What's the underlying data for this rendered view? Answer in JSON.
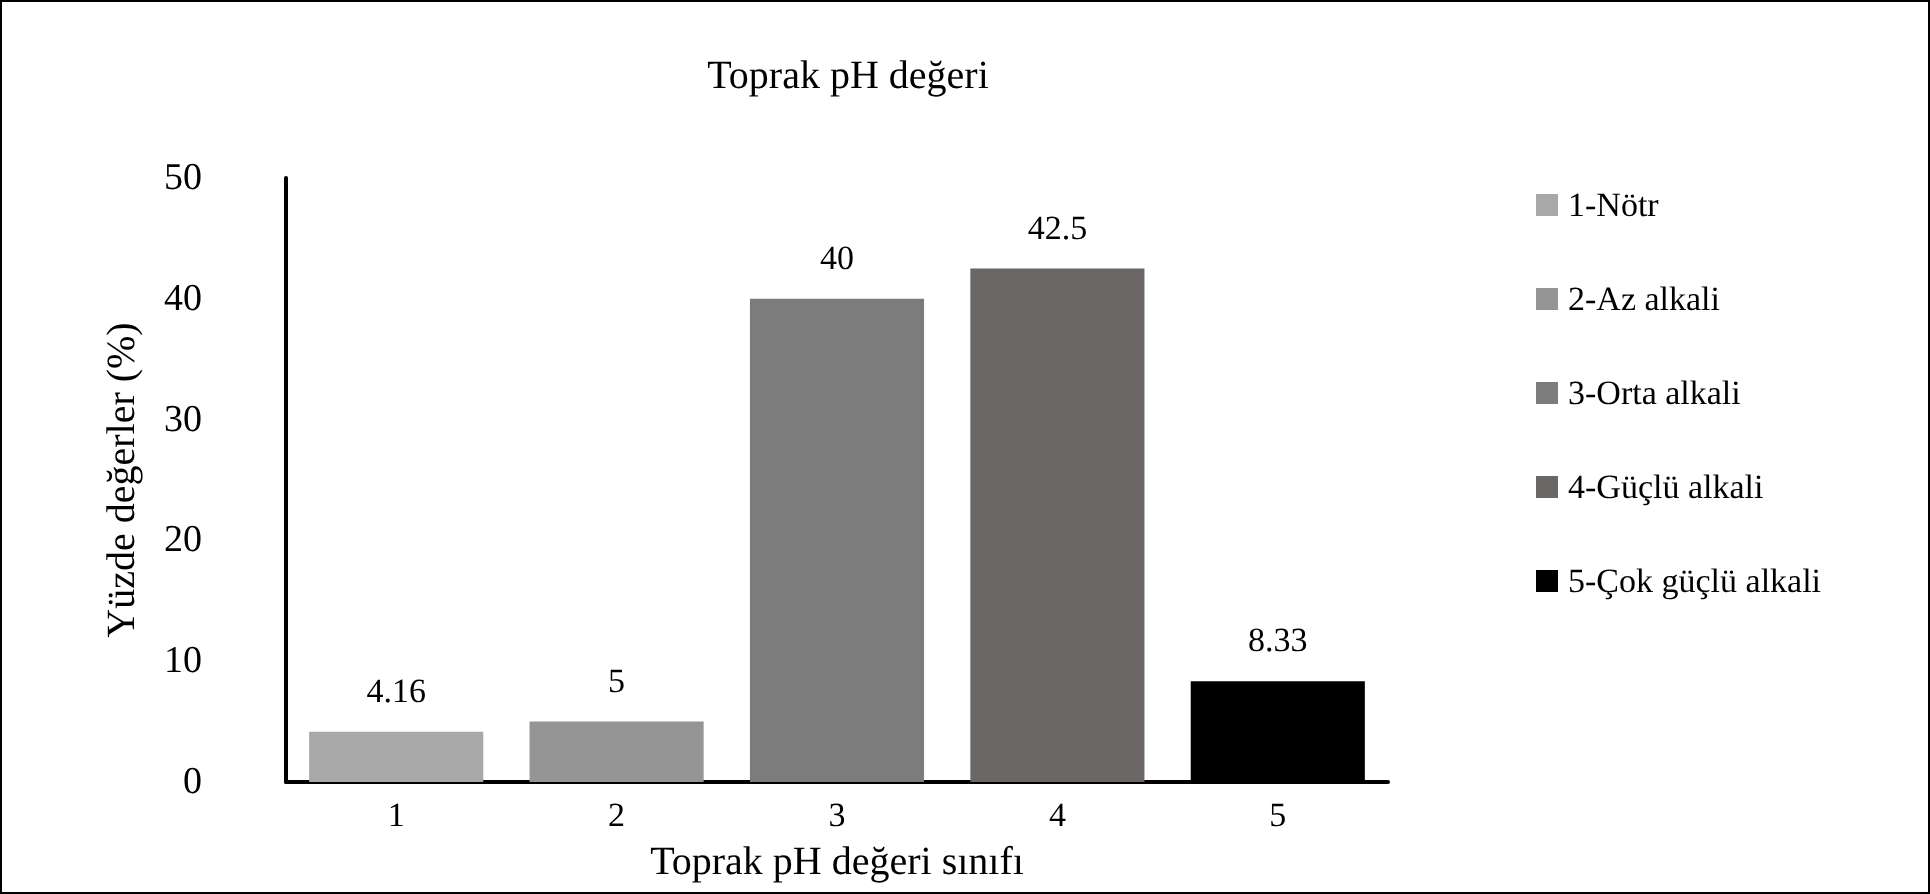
{
  "chart_data": {
    "type": "bar",
    "title": "Toprak pH değeri",
    "xlabel": "Toprak pH değeri sınıfı",
    "ylabel": "Yüzde değerler (%)",
    "categories": [
      "1",
      "2",
      "3",
      "4",
      "5"
    ],
    "series": [
      {
        "name": "1-Nötr",
        "color": "#a8a8a8",
        "values": [
          4.16,
          null,
          null,
          null,
          null
        ]
      },
      {
        "name": "2-Az alkali",
        "color": "#959595",
        "values": [
          null,
          5,
          null,
          null,
          null
        ]
      },
      {
        "name": "3-Orta alkali",
        "color": "#7c7c7c",
        "values": [
          null,
          null,
          40,
          null,
          null
        ]
      },
      {
        "name": "4-Güçlü alkali",
        "color": "#6b6767",
        "values": [
          null,
          null,
          null,
          42.5,
          null
        ]
      },
      {
        "name": "5-Çok güçlü alkali",
        "color": "#000000",
        "values": [
          null,
          null,
          null,
          null,
          8.33
        ]
      }
    ],
    "ylim": [
      0,
      50
    ],
    "yticks": [
      0,
      10,
      20,
      30,
      40,
      50
    ],
    "grid": false,
    "legend": "right",
    "data_labels": true
  }
}
